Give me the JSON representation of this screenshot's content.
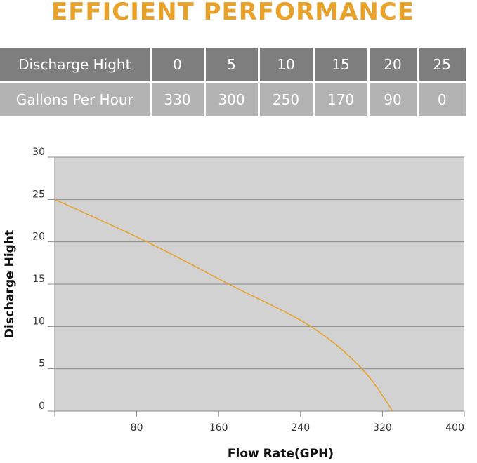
{
  "title": "EFFICIENT PERFORMANCE",
  "table": {
    "row1": [
      "Discharge Hight",
      "0",
      "5",
      "10",
      "15",
      "20",
      "25"
    ],
    "row2": [
      "Gallons Per Hour",
      "330",
      "300",
      "250",
      "170",
      "90",
      "0"
    ]
  },
  "chart_data": {
    "type": "line",
    "title": "",
    "xlabel": "Flow Rate(GPH)",
    "ylabel": "Discharge Hight",
    "xlim": [
      0,
      400
    ],
    "ylim": [
      0,
      30
    ],
    "xticks": [
      80,
      160,
      240,
      320,
      400
    ],
    "yticks": [
      0,
      5,
      10,
      15,
      20,
      25,
      30
    ],
    "grid": "horizontal",
    "plot_background": "#d2d2d2",
    "line_color": "#e8a129",
    "series": [
      {
        "x": [
          0,
          90,
          170,
          250,
          300,
          330
        ],
        "y": [
          25,
          20,
          15,
          10,
          5,
          0
        ]
      }
    ]
  }
}
